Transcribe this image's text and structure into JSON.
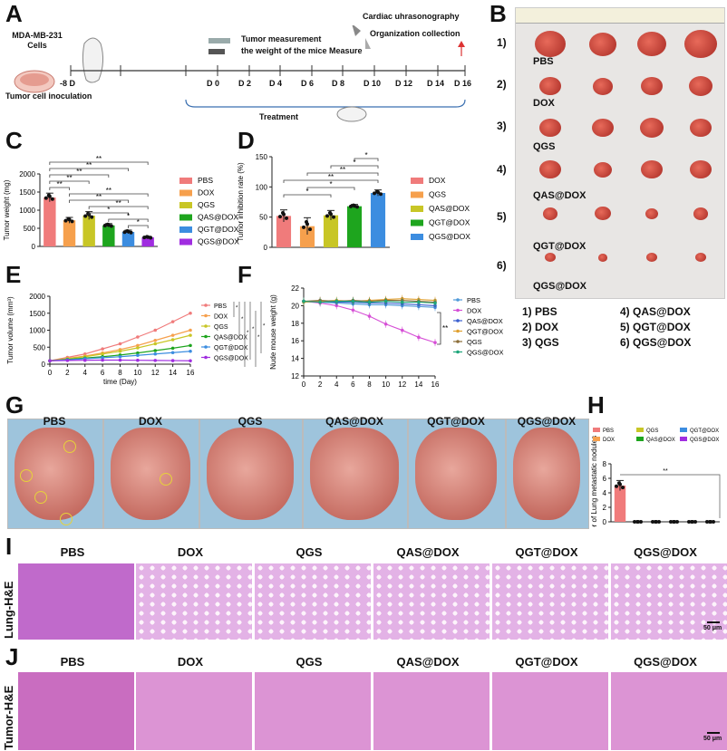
{
  "panels": {
    "A": "A",
    "B": "B",
    "C": "C",
    "D": "D",
    "E": "E",
    "F": "F",
    "G": "G",
    "H": "H",
    "I": "I",
    "J": "J"
  },
  "panelA": {
    "cells_label": "MDA-MB-231\nCells",
    "inoculation": "Tumor cell inoculation",
    "day_start": "-8 D",
    "days": [
      "D 0",
      "D 2",
      "D 4",
      "D 6",
      "D 8",
      "D 10",
      "D 12",
      "D 14",
      "D 16"
    ],
    "tumor_measure": "Tumor measurement",
    "weight_measure": "the weight of the mice Measure",
    "cardiac": "Cardiac uhrasonography",
    "organ": "Organization collection",
    "treatment": "Treatment"
  },
  "panelB": {
    "row_labels": [
      "1)",
      "2)",
      "3)",
      "4)",
      "5)",
      "6)"
    ],
    "group_labels": [
      "PBS",
      "DOX",
      "QGS",
      "QAS@DOX",
      "QGT@DOX",
      "QGS@DOX"
    ],
    "legend_left": [
      "1) PBS",
      "2) DOX",
      "3) QGS"
    ],
    "legend_right": [
      "4) QAS@DOX",
      "5) QGT@DOX",
      "6) QGS@DOX"
    ],
    "ruler_numbers": [
      "2",
      "21",
      "23",
      "25",
      "27",
      "29",
      "31",
      "33",
      "35",
      "37",
      "39"
    ]
  },
  "panelG": {
    "labels": [
      "PBS",
      "DOX",
      "QGS",
      "QAS@DOX",
      "QGT@DOX",
      "QGS@DOX"
    ]
  },
  "panelI": {
    "labels": [
      "PBS",
      "DOX",
      "QGS",
      "QAS@DOX",
      "QGT@DOX",
      "QGS@DOX"
    ],
    "side": "Lung-H&E",
    "scale": "50 μm"
  },
  "panelJ": {
    "labels": [
      "PBS",
      "DOX",
      "QGS",
      "QAS@DOX",
      "QGT@DOX",
      "QGS@DOX"
    ],
    "side": "Tumor-H&E",
    "scale": "50 μm"
  },
  "colors": {
    "PBS": "#f07b7b",
    "DOX": "#f6a04d",
    "QGS": "#c8c626",
    "QAS@DOX": "#1ea51e",
    "QGT@DOX": "#3c8de0",
    "QGS@DOX": "#a02de0"
  },
  "chart_data": [
    {
      "id": "C",
      "type": "bar",
      "categories": [
        "PBS",
        "DOX",
        "QGS",
        "QAS@DOX",
        "QGT@DOX",
        "QGS@DOX"
      ],
      "values": [
        1350,
        720,
        850,
        580,
        400,
        250
      ],
      "errors": [
        120,
        80,
        110,
        50,
        50,
        30
      ],
      "ylabel": "Tumor weight (mg)",
      "ylim": [
        0,
        2000
      ],
      "yticks": [
        0,
        500,
        1000,
        1500,
        2000
      ],
      "legend": [
        "PBS",
        "DOX",
        "QGS",
        "QAS@DOX",
        "QGT@DOX",
        "QGS@DOX"
      ],
      "sig_labels": [
        "**",
        "**",
        "**",
        "**",
        "**",
        "**",
        "**",
        "**",
        "*",
        "*",
        "*"
      ]
    },
    {
      "id": "D",
      "type": "bar",
      "categories": [
        "DOX",
        "QGS",
        "QAS@DOX",
        "QGT@DOX",
        "QGS@DOX"
      ],
      "values": [
        52,
        35,
        53,
        68,
        90
      ],
      "errors": [
        10,
        14,
        8,
        3,
        5
      ],
      "ylabel": "Tumor inhibition rate (%)",
      "ylim": [
        0,
        150
      ],
      "yticks": [
        0,
        50,
        100,
        150
      ],
      "legend": [
        "DOX",
        "QGS",
        "QAS@DOX",
        "QGT@DOX",
        "QGS@DOX"
      ],
      "sig_labels": [
        "*",
        "*",
        "**",
        "**",
        "*",
        "*"
      ]
    },
    {
      "id": "E",
      "type": "line",
      "x": [
        0,
        2,
        4,
        6,
        8,
        10,
        12,
        14,
        16
      ],
      "series": [
        {
          "name": "PBS",
          "values": [
            100,
            200,
            300,
            450,
            600,
            800,
            1000,
            1250,
            1500
          ]
        },
        {
          "name": "DOX",
          "values": [
            100,
            170,
            240,
            330,
            430,
            550,
            700,
            850,
            1000
          ]
        },
        {
          "name": "QGS",
          "values": [
            100,
            160,
            220,
            300,
            380,
            480,
            600,
            720,
            850
          ]
        },
        {
          "name": "QAS@DOX",
          "values": [
            100,
            140,
            180,
            220,
            270,
            330,
            400,
            470,
            550
          ]
        },
        {
          "name": "QGT@DOX",
          "values": [
            100,
            130,
            160,
            190,
            220,
            260,
            300,
            340,
            380
          ]
        },
        {
          "name": "QGS@DOX",
          "values": [
            100,
            110,
            115,
            120,
            120,
            115,
            110,
            105,
            100
          ]
        }
      ],
      "xlabel": "time (Day)",
      "ylabel": "Tumor volume (mm³)",
      "xlim": [
        0,
        16
      ],
      "ylim": [
        0,
        2000
      ],
      "xticks": [
        0,
        2,
        4,
        6,
        8,
        10,
        12,
        14,
        16
      ],
      "yticks": [
        0,
        500,
        1000,
        1500,
        2000
      ],
      "sig_labels": [
        "*",
        "*",
        "*",
        "*",
        "*",
        "*"
      ]
    },
    {
      "id": "F",
      "type": "line",
      "x": [
        0,
        2,
        4,
        6,
        8,
        10,
        12,
        14,
        16
      ],
      "series": [
        {
          "name": "PBS",
          "values": [
            20.5,
            20.4,
            20.3,
            20.2,
            20.1,
            20.1,
            20.0,
            19.9,
            19.8
          ]
        },
        {
          "name": "DOX",
          "values": [
            20.5,
            20.3,
            20.0,
            19.5,
            18.8,
            17.9,
            17.2,
            16.4,
            15.8
          ]
        },
        {
          "name": "QAS@DOX",
          "values": [
            20.5,
            20.5,
            20.4,
            20.4,
            20.3,
            20.3,
            20.2,
            20.1,
            20.0
          ]
        },
        {
          "name": "QGT@DOX",
          "values": [
            20.4,
            20.5,
            20.6,
            20.5,
            20.6,
            20.7,
            20.8,
            20.7,
            20.6
          ]
        },
        {
          "name": "QGS",
          "values": [
            20.5,
            20.6,
            20.5,
            20.6,
            20.5,
            20.6,
            20.6,
            20.5,
            20.4
          ]
        },
        {
          "name": "QGS@DOX",
          "values": [
            20.5,
            20.4,
            20.5,
            20.5,
            20.4,
            20.5,
            20.4,
            20.4,
            20.3
          ]
        }
      ],
      "ylabel": "Nude mouse weight (g)",
      "xlim": [
        0,
        16
      ],
      "ylim": [
        12,
        22
      ],
      "xticks": [
        0,
        2,
        4,
        6,
        8,
        10,
        12,
        14,
        16
      ],
      "yticks": [
        12,
        14,
        16,
        18,
        20,
        22
      ],
      "sig_labels": [
        "**"
      ]
    },
    {
      "id": "H",
      "type": "bar",
      "categories": [
        "PBS",
        "DOX",
        "QGS",
        "QAS@DOX",
        "QGT@DOX",
        "QGS@DOX"
      ],
      "values": [
        5,
        0,
        0,
        0,
        0,
        0
      ],
      "errors": [
        0.7,
        0,
        0,
        0,
        0,
        0
      ],
      "ylabel": "Number of Lung metastatic nodules",
      "ylim": [
        0,
        8
      ],
      "yticks": [
        0,
        2,
        4,
        6,
        8
      ],
      "legend": [
        "PBS",
        "QGS",
        "QGT@DOX",
        "DOX",
        "QAS@DOX",
        "QGS@DOX"
      ],
      "sig_labels": [
        "**"
      ]
    }
  ],
  "line_colors_F": {
    "PBS": "#4f9ad9",
    "DOX": "#d64fd6",
    "QAS@DOX": "#3a5fcf",
    "QGT@DOX": "#e0a030",
    "QGS": "#8c6e3a",
    "QGS@DOX": "#1ea57a"
  }
}
